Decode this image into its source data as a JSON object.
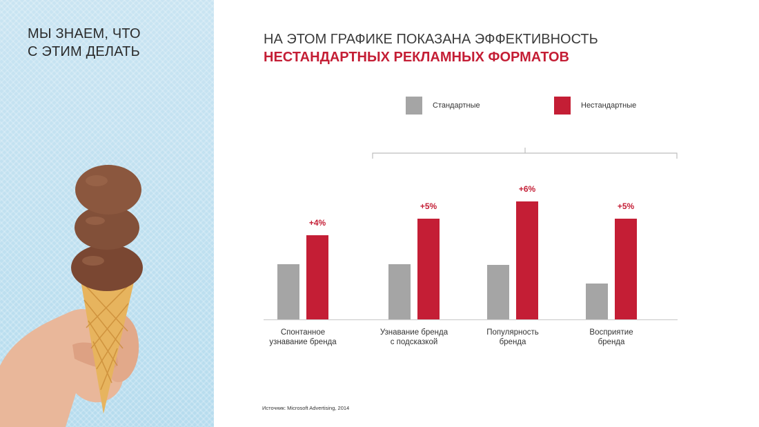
{
  "left_panel": {
    "title_lines": [
      "МЫ ЗНАЕМ, ЧТО",
      "С ЭТИМ ДЕЛАТЬ"
    ],
    "image": "ice-cream-cone-in-hand"
  },
  "heading": {
    "line1": "НА ЭТОМ ГРАФИКЕ ПОКАЗАНА ЭФФЕКТИВНОСТЬ",
    "line2": "НЕСТАНДАРТНЫХ РЕКЛАМНЫХ ФОРМАТОВ"
  },
  "legend": [
    {
      "label": "Стандартные",
      "color": "#a5a5a5"
    },
    {
      "label": "Нестандартные",
      "color": "#c41e35"
    }
  ],
  "chart_data": {
    "type": "bar",
    "categories": [
      [
        "Спонтанное",
        "узнавание бренда"
      ],
      [
        "Узнавание бренда",
        "с подсказкой"
      ],
      [
        "Популярность",
        "бренда"
      ],
      [
        "Восприятие",
        "бренда"
      ]
    ],
    "series": [
      {
        "name": "Стандартные",
        "color": "#a5a5a5",
        "values": [
          80,
          80,
          79,
          52
        ]
      },
      {
        "name": "Нестандартные",
        "color": "#c41e35",
        "values": [
          122,
          146,
          171,
          146
        ]
      }
    ],
    "data_labels": [
      "+4%",
      "+5%",
      "+6%",
      "+5%"
    ],
    "ylim": [
      0,
      200
    ],
    "grid": false,
    "legend_position": "top"
  },
  "source": "Источник: Microsoft Advertising, 2014"
}
